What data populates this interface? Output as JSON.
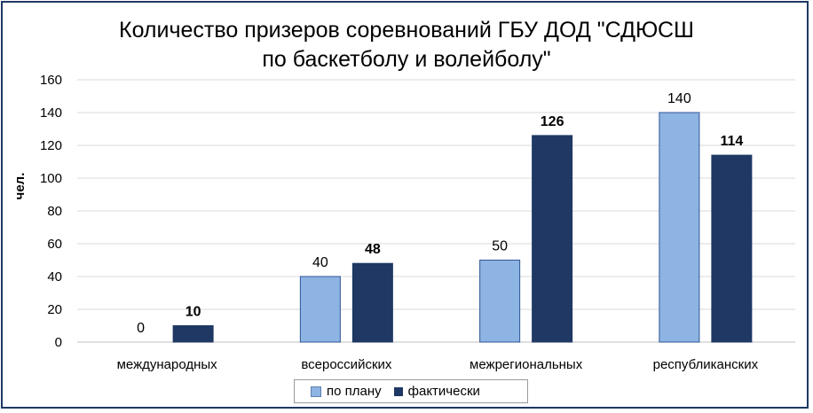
{
  "chart_data": {
    "type": "bar",
    "title_lines": [
      "Количество призеров соревнований ГБУ ДОД \"СДЮСШ",
      "по баскетболу и волейболу\""
    ],
    "ylabel": "чел.",
    "xlabel": "",
    "ylim": [
      0,
      160
    ],
    "yticks": [
      "0",
      "20",
      "40",
      "60",
      "80",
      "100",
      "120",
      "140",
      "160"
    ],
    "categories": [
      "международных",
      "всероссийских",
      "межрегиональных",
      "республиканских"
    ],
    "series": [
      {
        "name": "по плану",
        "values": [
          0,
          40,
          50,
          140
        ],
        "color": "#8eb4e3",
        "label_bold": false
      },
      {
        "name": "фактически",
        "values": [
          10,
          48,
          126,
          114
        ],
        "color": "#1f3864",
        "label_bold": true
      }
    ],
    "grid": true,
    "legend_position": "bottom"
  }
}
